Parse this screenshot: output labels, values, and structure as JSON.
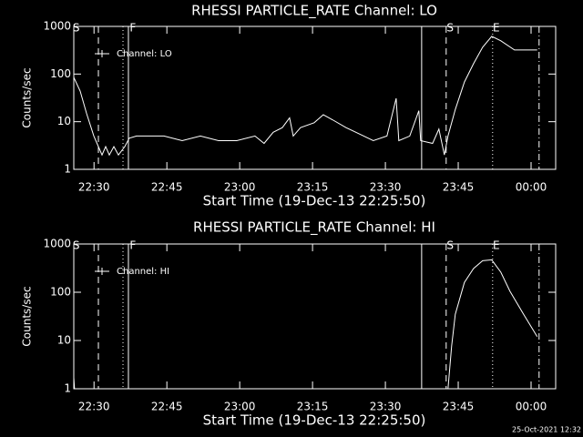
{
  "chart_data": [
    {
      "type": "line",
      "title": "RHESSI PARTICLE_RATE Channel: LO",
      "xlabel": "Start Time (19-Dec-13 22:25:50)",
      "ylabel": "Counts/sec",
      "xlim": [
        0,
        5954
      ],
      "ylim": [
        1,
        1000
      ],
      "log_y": true,
      "xticks": [
        {
          "value": 250,
          "label": "22:30"
        },
        {
          "value": 1150,
          "label": "22:45"
        },
        {
          "value": 2050,
          "label": "23:00"
        },
        {
          "value": 2950,
          "label": "23:15"
        },
        {
          "value": 3850,
          "label": "23:30"
        },
        {
          "value": 4750,
          "label": "23:45"
        },
        {
          "value": 5650,
          "label": "00:00"
        }
      ],
      "yticks": [
        1,
        10,
        100,
        1000
      ],
      "series": [
        {
          "name": "Channel: LO",
          "color": "#ffffff",
          "x": [
            0,
            79,
            158,
            248,
            304,
            349,
            394,
            439,
            495,
            551,
            630,
            686,
            776,
            889,
            1114,
            1339,
            1564,
            1789,
            2014,
            2239,
            2351,
            2464,
            2576,
            2666,
            2711,
            2801,
            2970,
            3083,
            3195,
            3364,
            3533,
            3701,
            3870,
            3983,
            4016,
            4151,
            4264,
            4286,
            4433,
            4511,
            4579,
            4624,
            4714,
            4826,
            4939,
            5051,
            5164,
            5276,
            5445,
            5726
          ],
          "values": [
            85,
            44,
            15,
            5,
            3,
            2,
            3,
            2,
            3,
            2,
            3,
            4.5,
            5,
            5,
            5,
            4,
            5,
            4,
            4,
            5,
            3.5,
            6,
            7.5,
            12,
            5,
            7.5,
            9.5,
            14,
            11,
            7.5,
            5.5,
            4,
            5,
            31,
            4,
            5,
            17,
            4,
            3.5,
            7,
            2,
            5,
            18,
            68,
            165,
            365,
            620,
            500,
            320,
            320
          ]
        }
      ],
      "vlines": [
        {
          "x": 304,
          "style": "dashed"
        },
        {
          "x": 608,
          "style": "dotted"
        },
        {
          "x": 675,
          "style": "solid"
        },
        {
          "x": 4298,
          "style": "solid"
        },
        {
          "x": 4601,
          "style": "dashed"
        },
        {
          "x": 5175,
          "style": "dotted"
        },
        {
          "x": 5749,
          "style": "dashdot"
        }
      ],
      "annotations": [
        {
          "x": 30,
          "text": "S"
        },
        {
          "x": 730,
          "text": "F"
        },
        {
          "x": 4650,
          "text": "S"
        },
        {
          "x": 5220,
          "text": "E"
        }
      ]
    },
    {
      "type": "line",
      "title": "RHESSI PARTICLE_RATE Channel: HI",
      "xlabel": "Start Time (19-Dec-13 22:25:50)",
      "ylabel": "Counts/sec",
      "xlim": [
        0,
        5954
      ],
      "ylim": [
        1,
        1000
      ],
      "log_y": true,
      "xticks": [
        {
          "value": 250,
          "label": "22:30"
        },
        {
          "value": 1150,
          "label": "22:45"
        },
        {
          "value": 2050,
          "label": "23:00"
        },
        {
          "value": 2950,
          "label": "23:15"
        },
        {
          "value": 3850,
          "label": "23:30"
        },
        {
          "value": 4750,
          "label": "23:45"
        },
        {
          "value": 5650,
          "label": "00:00"
        }
      ],
      "yticks": [
        1,
        10,
        100,
        1000
      ],
      "series": [
        {
          "name": "Channel: HI",
          "color": "#ffffff",
          "x": [
            0,
            20,
            4624,
            4669,
            4714,
            4826,
            4939,
            5051,
            5164,
            5276,
            5389,
            5558,
            5726
          ],
          "values": [
            1.7,
            0.5,
            1,
            7.7,
            35,
            160,
            310,
            450,
            470,
            260,
            105,
            35,
            12
          ]
        }
      ],
      "vlines": [
        {
          "x": 304,
          "style": "dashed"
        },
        {
          "x": 608,
          "style": "dotted"
        },
        {
          "x": 675,
          "style": "solid"
        },
        {
          "x": 4298,
          "style": "solid"
        },
        {
          "x": 4601,
          "style": "dashed"
        },
        {
          "x": 5175,
          "style": "dotted"
        },
        {
          "x": 5749,
          "style": "dashdot"
        }
      ],
      "annotations": [
        {
          "x": 30,
          "text": "S"
        },
        {
          "x": 730,
          "text": "F"
        },
        {
          "x": 4650,
          "text": "S"
        },
        {
          "x": 5220,
          "text": "E"
        }
      ]
    }
  ],
  "footer": "25-Oct-2021 12:32"
}
